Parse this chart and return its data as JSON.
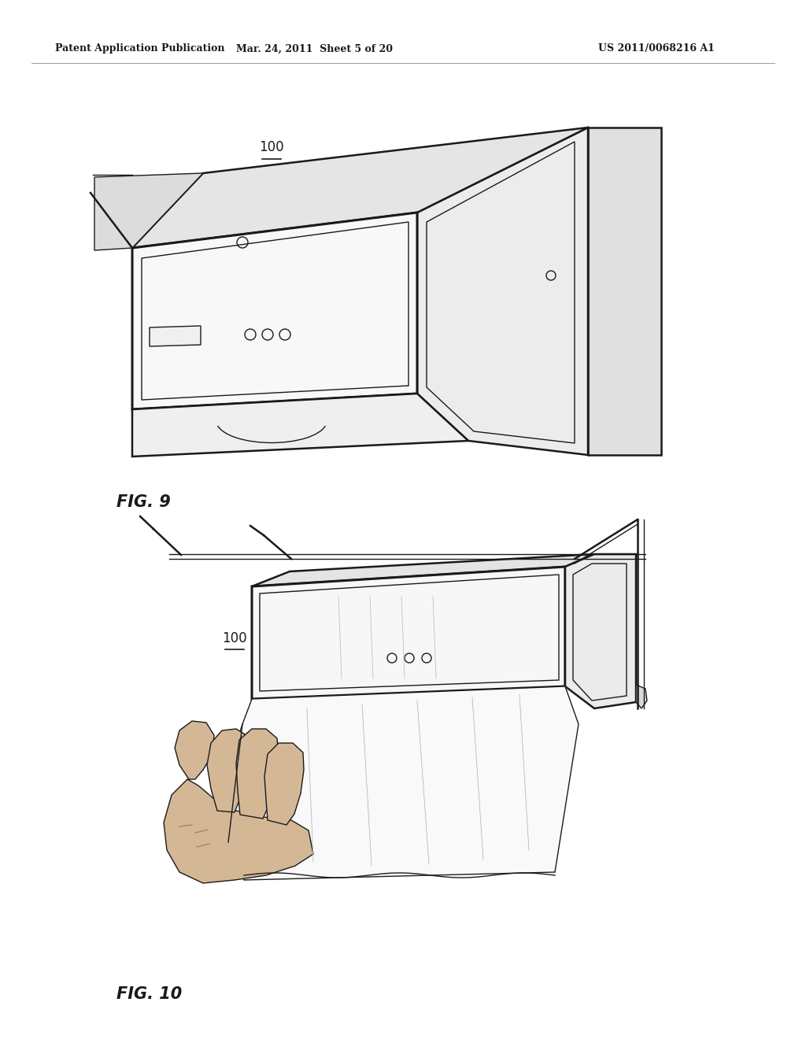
{
  "header_left": "Patent Application Publication",
  "header_mid": "Mar. 24, 2011  Sheet 5 of 20",
  "header_right": "US 2011/0068216 A1",
  "fig9_label": "FIG. 9",
  "fig10_label": "FIG. 10",
  "ref_100": "100",
  "background_color": "#ffffff",
  "line_color": "#1a1a1a",
  "fill_light": "#f7f7f7",
  "fill_mid": "#ebebeb",
  "fill_dark": "#d8d8d8",
  "fill_hand": "#d4a97a",
  "header_fontsize": 9,
  "label_fontsize": 15,
  "ref_fontsize": 12
}
